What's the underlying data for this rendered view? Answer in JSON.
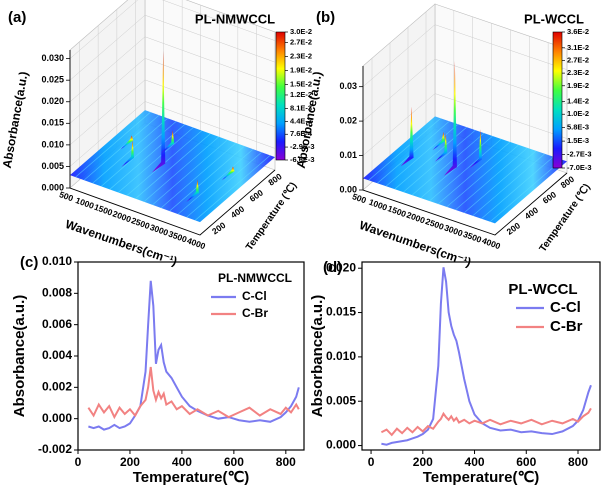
{
  "chart_data": [
    {
      "type": "surface3d",
      "panel_label": "(a)",
      "title": "PL-NMWCCL",
      "zlabel": "Absorbance(a.u.)",
      "xlabel": "Wavenumbers(cm⁻¹)",
      "ylabel": "Temperature (℃)",
      "xlim": [
        500,
        4000
      ],
      "xticks": [
        500,
        1000,
        1500,
        2000,
        2500,
        3000,
        3500,
        4000
      ],
      "ylim": [
        100,
        900
      ],
      "yticks": [
        200,
        400,
        600,
        800
      ],
      "zlim": [
        0,
        0.032
      ],
      "zticks": [
        {
          "value": 0,
          "label": "0.000"
        },
        0.005,
        {
          "value": 0.01,
          "label": "0.010"
        },
        0.015,
        {
          "value": 0.02,
          "label": "0.020"
        },
        0.025,
        {
          "value": 0.03,
          "label": "0.030"
        }
      ],
      "colormap": [
        "#8a00d4",
        "#1a1aff",
        "#00a0ff",
        "#00e0c0",
        "#40ff40",
        "#ffff00",
        "#ff8000",
        "#e00000"
      ],
      "colorbar_ticks": [
        {
          "value": 0.03,
          "label": "3.0E-2"
        },
        {
          "value": 0.027,
          "label": "2.7E-2"
        },
        {
          "value": 0.023,
          "label": "2.3E-2"
        },
        {
          "value": 0.019,
          "label": "1.9E-2"
        },
        {
          "value": 0.015,
          "label": "1.5E-2"
        },
        {
          "value": 0.012,
          "label": "1.2E-2"
        },
        {
          "value": 0.0081,
          "label": "8.1E-3"
        },
        {
          "value": 0.0044,
          "label": "4.4E-3"
        },
        {
          "value": 0.00076,
          "label": "7.6E-4"
        },
        {
          "value": -0.0029,
          "label": "-2.9E-3"
        },
        {
          "value": -0.0066,
          "label": "-6.6E-3"
        }
      ]
    },
    {
      "type": "surface3d",
      "panel_label": "(b)",
      "title": "PL-WCCL",
      "zlabel": "Absorbance(a.u.)",
      "xlabel": "Wavenumbers(cm⁻¹)",
      "ylabel": "Temperature (℃)",
      "xlim": [
        500,
        4000
      ],
      "xticks": [
        500,
        1000,
        1500,
        2000,
        2500,
        3000,
        3500,
        4000
      ],
      "ylim": [
        100,
        900
      ],
      "yticks": [
        200,
        400,
        600,
        800
      ],
      "zlim": [
        0,
        0.036
      ],
      "zticks": [
        {
          "value": 0,
          "label": "0.00"
        },
        0.01,
        0.02,
        0.03
      ],
      "colormap": [
        "#8a00d4",
        "#1a1aff",
        "#00a0ff",
        "#00e0c0",
        "#40ff40",
        "#ffff00",
        "#ff8000",
        "#e00000"
      ],
      "colorbar_ticks": [
        {
          "value": 0.036,
          "label": "3.6E-2"
        },
        {
          "value": 0.031,
          "label": "3.1E-2"
        },
        {
          "value": 0.027,
          "label": "2.7E-2"
        },
        {
          "value": 0.023,
          "label": "2.3E-2"
        },
        {
          "value": 0.019,
          "label": "1.9E-2"
        },
        {
          "value": 0.014,
          "label": "1.4E-2"
        },
        {
          "value": 0.01,
          "label": "1.0E-2"
        },
        {
          "value": 0.0058,
          "label": "5.8E-3"
        },
        {
          "value": 0.0015,
          "label": "1.5E-3"
        },
        {
          "value": -0.0027,
          "label": "-2.7E-3"
        },
        {
          "value": -0.007,
          "label": "-7.0E-3"
        }
      ]
    },
    {
      "type": "line",
      "panel_label": "(c)",
      "legend_title": "PL-NMWCCL",
      "xlabel": "Temperature(℃)",
      "ylabel": "Absorbance(a.u.)",
      "xlim": [
        0,
        870
      ],
      "xticks": [
        0,
        200,
        400,
        600,
        800
      ],
      "ylim": [
        -0.002,
        0.01
      ],
      "yticks": [
        -0.002,
        {
          "value": 0,
          "label": "0.000"
        },
        0.002,
        0.004,
        0.006,
        0.008,
        {
          "value": 0.01,
          "label": "0.010"
        }
      ],
      "x": [
        40,
        60,
        80,
        100,
        120,
        140,
        160,
        180,
        200,
        220,
        240,
        260,
        270,
        280,
        290,
        300,
        310,
        320,
        330,
        340,
        360,
        380,
        400,
        430,
        460,
        500,
        540,
        580,
        620,
        660,
        700,
        740,
        780,
        800,
        820,
        840,
        850
      ],
      "series": [
        {
          "name": "C-Cl",
          "color": "#7b7bf0",
          "values": [
            -0.0005,
            -0.0006,
            -0.0005,
            -0.0007,
            -0.0006,
            -0.0004,
            -0.0006,
            -0.0005,
            -0.0003,
            0.0002,
            0.0008,
            0.003,
            0.006,
            0.0088,
            0.0072,
            0.0035,
            0.0044,
            0.0047,
            0.0036,
            0.003,
            0.0026,
            0.002,
            0.0014,
            0.0008,
            0.0005,
            0.0002,
            0,
            0.0001,
            -0.0001,
            -0.0002,
            -0.0001,
            -0.0002,
            0.0001,
            0.0004,
            0.0008,
            0.0014,
            0.002
          ]
        },
        {
          "name": "C-Br",
          "color": "#f28282",
          "values": [
            0.0007,
            0.0002,
            0.0009,
            0.0004,
            0.0008,
            0.0001,
            0.0007,
            0.0003,
            0.0006,
            0.0002,
            0.0008,
            0.0012,
            0.002,
            0.0033,
            0.0018,
            0.0012,
            0.0017,
            0.0013,
            0.0016,
            0.0009,
            0.0011,
            0.0006,
            0.0008,
            0.0003,
            0.0006,
            0.0002,
            0.0005,
            0.0001,
            0.0004,
            0.0007,
            0.0002,
            0.0006,
            0.0003,
            0.0007,
            0.0004,
            0.0009,
            0.0006
          ]
        }
      ]
    },
    {
      "type": "line",
      "panel_label": "(d)",
      "legend_title": "PL-WCCL",
      "xlabel": "Temperature(℃)",
      "ylabel": "Absorbance(a.u.)",
      "xlim": [
        -35,
        885
      ],
      "xticks": [
        0,
        200,
        400,
        600,
        800
      ],
      "ylim": [
        -0.0005,
        0.0207
      ],
      "yticks": [
        {
          "value": 0,
          "label": "0.000"
        },
        0.005,
        {
          "value": 0.01,
          "label": "0.010"
        },
        0.015,
        {
          "value": 0.02,
          "label": "0.020"
        }
      ],
      "x": [
        40,
        60,
        80,
        100,
        120,
        140,
        160,
        180,
        200,
        220,
        240,
        260,
        270,
        280,
        290,
        300,
        310,
        320,
        330,
        340,
        360,
        380,
        400,
        430,
        460,
        500,
        540,
        580,
        620,
        660,
        700,
        740,
        780,
        800,
        820,
        840,
        850
      ],
      "series": [
        {
          "name": "C-Cl",
          "color": "#7b7bf0",
          "values": [
            0.0002,
            0.0001,
            0.0003,
            0.0004,
            0.0005,
            0.0006,
            0.0008,
            0.001,
            0.0013,
            0.0018,
            0.003,
            0.009,
            0.016,
            0.0201,
            0.0185,
            0.015,
            0.0135,
            0.0125,
            0.0118,
            0.0105,
            0.0075,
            0.005,
            0.0035,
            0.0025,
            0.002,
            0.0017,
            0.0018,
            0.0015,
            0.0016,
            0.0014,
            0.0013,
            0.0016,
            0.0022,
            0.0028,
            0.004,
            0.006,
            0.0068
          ]
        },
        {
          "name": "C-Br",
          "color": "#f28282",
          "values": [
            0.0015,
            0.0018,
            0.0012,
            0.0019,
            0.0014,
            0.002,
            0.0015,
            0.0021,
            0.0016,
            0.0022,
            0.0019,
            0.0027,
            0.003,
            0.0036,
            0.0032,
            0.0029,
            0.0033,
            0.0028,
            0.0031,
            0.0026,
            0.0029,
            0.0025,
            0.0028,
            0.0025,
            0.0029,
            0.0024,
            0.0028,
            0.0025,
            0.0029,
            0.0024,
            0.0028,
            0.0025,
            0.003,
            0.0027,
            0.0033,
            0.0037,
            0.0042
          ]
        }
      ]
    }
  ]
}
